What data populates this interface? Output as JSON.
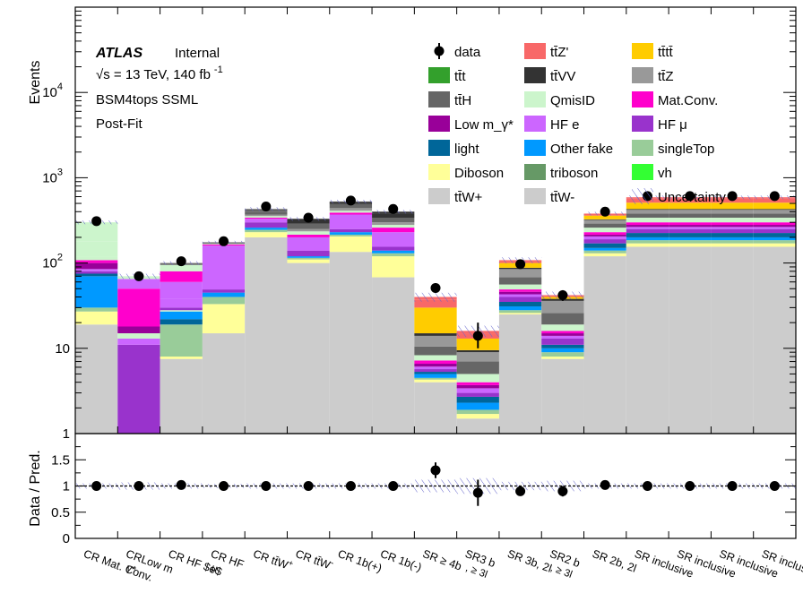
{
  "chart_data": {
    "type": "bar",
    "stacked": true,
    "yscale": "log",
    "ylim": [
      1,
      100000
    ],
    "ratio_ylim": [
      0,
      2
    ],
    "ylabel": "Events",
    "ratio_ylabel": "Data / Pred.",
    "ytick_labels": [
      "1",
      "10",
      "10",
      "10",
      "10"
    ],
    "ytick_exponents": [
      "",
      "",
      "2",
      "3",
      "4"
    ],
    "ratio_ytick_labels": [
      "0",
      "0.5",
      "1",
      "1.5"
    ],
    "header": {
      "experiment": "ATLAS",
      "status": "Internal",
      "energy_prefix": "√s = 13 TeV, 140 fb",
      "energy_exponent": "-1",
      "analysis": "BSM4tops SSML",
      "fit": "Post-Fit"
    },
    "categories": [
      "CR Mat. Conv.",
      "CRLow m_γ*",
      "CR HF $e$",
      "CR HF μ",
      "CR tt̄W+",
      "CR tt̄W-",
      "CR 1b(+)",
      "CR 1b(-)",
      "SR ≥ 4b",
      "SR3 b , ≥ 3l",
      "SR 3b, 2l",
      "SR2 b , ≥ 3l",
      "SR 2b, 2l",
      "SR inclusive",
      "SR inclusive",
      "SR inclusive",
      "SR inclusive"
    ],
    "category_labels": [
      "CR Mat. Conv.",
      "CRLow m",
      "CR HF $e$",
      "CR HF",
      "CR tt̄W",
      "CR tt̄W",
      "CR 1b(+)",
      "CR 1b(-)",
      "SR ≥ 4b",
      "SR3 b",
      "SR 3b, 2l",
      "SR2 b",
      "SR 2b, 2l",
      "SR inclusive",
      "SR inclusive",
      "SR inclusive",
      "SR inclusi"
    ],
    "category_sublabels": [
      "",
      "γ*",
      "",
      "μ",
      "",
      "",
      "",
      "",
      "",
      ", ≥ 3l",
      "",
      ", ≥ 3l",
      "",
      "",
      "",
      "",
      ""
    ],
    "category_superscripts": [
      "",
      "",
      "",
      "",
      "+",
      "-",
      "",
      "",
      "",
      "",
      "",
      "",
      "",
      "",
      "",
      "",
      ""
    ],
    "legend": [
      {
        "name": "data",
        "kind": "marker",
        "color": "#000000"
      },
      {
        "name": "tt̄Z'",
        "color": "#f86868"
      },
      {
        "name": "tt̄tt̄",
        "color": "#ffcc00"
      },
      {
        "name": "tt̄t",
        "color": "#33a02c"
      },
      {
        "name": "tt̄VV",
        "color": "#333333"
      },
      {
        "name": "tt̄Z",
        "color": "#999999"
      },
      {
        "name": "tt̄H",
        "color": "#666666"
      },
      {
        "name": "QmisID",
        "color": "#ccf5cc"
      },
      {
        "name": "Mat.Conv.",
        "color": "#ff00cc"
      },
      {
        "name": "Low m_γ*",
        "color": "#990099"
      },
      {
        "name": "HF e",
        "color": "#cc66ff"
      },
      {
        "name": "HF μ",
        "color": "#9933cc"
      },
      {
        "name": "light",
        "color": "#006699"
      },
      {
        "name": "Other fake",
        "color": "#0099ff"
      },
      {
        "name": "singleTop",
        "color": "#99cc99"
      },
      {
        "name": "Diboson",
        "color": "#ffff99"
      },
      {
        "name": "triboson",
        "color": "#669966"
      },
      {
        "name": "vh",
        "color": "#33ff33"
      },
      {
        "name": "tt̄W+",
        "color": "#cccccc"
      },
      {
        "name": "tt̄W-",
        "color": "#cccccc"
      },
      {
        "name": "Uncertainty",
        "kind": "hatch",
        "color": "#6666cc"
      }
    ],
    "stack_components": [
      "tt̄W",
      "Diboson",
      "singleTop",
      "Other fake",
      "light",
      "HF μ",
      "HF e",
      "Low m_γ*",
      "Mat.Conv.",
      "QmisID",
      "tt̄H",
      "tt̄Z",
      "tt̄VV",
      "tt̄t",
      "tt̄tt̄",
      "tt̄Z'"
    ],
    "stacks": [
      {
        "edges": [
          19,
          27,
          30,
          70,
          75,
          80,
          85,
          100,
          108,
          120,
          180,
          300
        ]
      },
      {
        "edges": [
          0.01,
          11,
          13,
          15,
          18,
          50,
          65,
          68,
          70
        ]
      },
      {
        "edges": [
          7.5,
          8,
          19,
          22,
          27,
          28,
          30,
          38,
          60,
          80,
          95,
          98,
          100
        ]
      },
      {
        "edges": [
          15,
          33,
          40,
          45,
          49,
          160,
          165,
          168,
          172,
          175
        ]
      },
      {
        "edges": [
          200,
          230,
          245,
          260,
          300,
          330,
          340,
          355,
          370,
          400,
          430
        ]
      },
      {
        "edges": [
          100,
          110,
          115,
          120,
          140,
          200,
          215,
          235,
          250,
          290,
          320,
          330
        ]
      },
      {
        "edges": [
          135,
          205,
          215,
          230,
          250,
          370,
          390,
          410,
          440,
          490,
          510,
          525
        ]
      },
      {
        "edges": [
          68,
          120,
          130,
          140,
          155,
          230,
          260,
          280,
          300,
          340,
          380,
          400
        ]
      },
      {
        "edges": [
          4,
          4.3,
          4.5,
          5,
          5.3,
          5.7,
          6.1,
          6.6,
          7.2,
          8.3,
          10.5,
          14,
          15,
          30,
          37,
          40
        ]
      },
      {
        "edges": [
          1.5,
          1.7,
          1.9,
          2.3,
          2.7,
          3,
          3.4,
          3.7,
          4,
          5,
          7,
          9,
          9.5,
          13,
          15,
          16
        ]
      },
      {
        "edges": [
          25,
          26,
          28,
          31,
          35,
          40,
          43,
          46,
          49,
          56,
          68,
          85,
          88,
          100,
          105,
          108
        ]
      },
      {
        "edges": [
          7.5,
          8,
          9,
          10,
          11,
          13,
          14,
          15,
          16,
          19,
          26,
          36,
          38,
          40,
          41,
          42
        ]
      },
      {
        "edges": [
          120,
          130,
          140,
          150,
          170,
          190,
          205,
          215,
          230,
          260,
          290,
          320,
          325,
          360,
          375,
          380
        ]
      },
      {
        "edges": [
          155,
          170,
          185,
          200,
          225,
          250,
          265,
          280,
          300,
          340,
          380,
          420,
          430,
          510,
          570,
          590
        ]
      },
      {
        "edges": [
          155,
          170,
          185,
          200,
          225,
          250,
          265,
          280,
          300,
          340,
          380,
          420,
          430,
          510,
          570,
          590
        ]
      },
      {
        "edges": [
          155,
          170,
          185,
          200,
          225,
          250,
          265,
          280,
          300,
          340,
          380,
          420,
          430,
          510,
          570,
          590
        ]
      },
      {
        "edges": [
          155,
          170,
          185,
          200,
          225,
          250,
          265,
          280,
          300,
          340,
          380,
          420,
          430,
          510,
          570,
          590
        ]
      }
    ],
    "stack_colors": [
      [
        "#cccccc",
        "#ffff99",
        "#99cc99",
        "#0099ff",
        "#006699",
        "#9933cc",
        "#cc66ff",
        "#990099",
        "#ff00cc",
        "#ccf5cc",
        "#ccf5cc"
      ],
      [
        "#0099ff",
        "#9933cc",
        "#cc66ff",
        "#ccf5cc",
        "#990099",
        "#ff00cc",
        "#cc66ff",
        "#ccf5cc"
      ],
      [
        "#cccccc",
        "#ffff99",
        "#99cc99",
        "#006699",
        "#0099ff",
        "#ccf5cc",
        "#9933cc",
        "#cc66ff",
        "#cc66ff",
        "#ff00cc",
        "#ccf5cc",
        "#666666"
      ],
      [
        "#cccccc",
        "#ffff99",
        "#99cc99",
        "#0099ff",
        "#9933cc",
        "#cc66ff",
        "#ff00cc",
        "#ccf5cc",
        "#666666"
      ],
      [
        "#cccccc",
        "#ffff99",
        "#99cc99",
        "#0099ff",
        "#9933cc",
        "#cc66ff",
        "#ff00cc",
        "#ccf5cc",
        "#999999",
        "#666666"
      ],
      [
        "#cccccc",
        "#ffff99",
        "#99cc99",
        "#0099ff",
        "#9933cc",
        "#cc66ff",
        "#ff00cc",
        "#ccf5cc",
        "#999999",
        "#666666",
        "#333333"
      ],
      [
        "#cccccc",
        "#ffff99",
        "#99cc99",
        "#0099ff",
        "#9933cc",
        "#cc66ff",
        "#ff00cc",
        "#ccf5cc",
        "#999999",
        "#666666",
        "#333333"
      ],
      [
        "#cccccc",
        "#ffff99",
        "#99cc99",
        "#0099ff",
        "#9933cc",
        "#cc66ff",
        "#ff00cc",
        "#ccf5cc",
        "#999999",
        "#666666",
        "#333333"
      ],
      [
        "#cccccc",
        "#ffff99",
        "#99cc99",
        "#0099ff",
        "#006699",
        "#9933cc",
        "#cc66ff",
        "#990099",
        "#ff00cc",
        "#ccf5cc",
        "#666666",
        "#999999",
        "#333333",
        "#ffcc00",
        "#f86868"
      ],
      [
        "#cccccc",
        "#ffff99",
        "#99cc99",
        "#0099ff",
        "#006699",
        "#9933cc",
        "#cc66ff",
        "#990099",
        "#ff00cc",
        "#ccf5cc",
        "#666666",
        "#999999",
        "#333333",
        "#ffcc00",
        "#f86868"
      ],
      [
        "#cccccc",
        "#ffff99",
        "#99cc99",
        "#0099ff",
        "#006699",
        "#9933cc",
        "#cc66ff",
        "#990099",
        "#ff00cc",
        "#ccf5cc",
        "#666666",
        "#999999",
        "#333333",
        "#ffcc00",
        "#f86868"
      ],
      [
        "#cccccc",
        "#ffff99",
        "#99cc99",
        "#0099ff",
        "#006699",
        "#9933cc",
        "#cc66ff",
        "#990099",
        "#ff00cc",
        "#ccf5cc",
        "#666666",
        "#999999",
        "#333333",
        "#ffcc00",
        "#f86868"
      ],
      [
        "#cccccc",
        "#ffff99",
        "#99cc99",
        "#0099ff",
        "#006699",
        "#9933cc",
        "#cc66ff",
        "#990099",
        "#ff00cc",
        "#ccf5cc",
        "#666666",
        "#999999",
        "#333333",
        "#ffcc00",
        "#f86868"
      ],
      [
        "#cccccc",
        "#ffff99",
        "#99cc99",
        "#0099ff",
        "#006699",
        "#9933cc",
        "#cc66ff",
        "#990099",
        "#ff00cc",
        "#ccf5cc",
        "#666666",
        "#999999",
        "#333333",
        "#ffcc00",
        "#f86868"
      ],
      [
        "#cccccc",
        "#ffff99",
        "#99cc99",
        "#0099ff",
        "#006699",
        "#9933cc",
        "#cc66ff",
        "#990099",
        "#ff00cc",
        "#ccf5cc",
        "#666666",
        "#999999",
        "#333333",
        "#ffcc00",
        "#f86868"
      ],
      [
        "#cccccc",
        "#ffff99",
        "#99cc99",
        "#0099ff",
        "#006699",
        "#9933cc",
        "#cc66ff",
        "#990099",
        "#ff00cc",
        "#ccf5cc",
        "#666666",
        "#999999",
        "#333333",
        "#ffcc00",
        "#f86868"
      ],
      [
        "#cccccc",
        "#ffff99",
        "#99cc99",
        "#0099ff",
        "#006699",
        "#9933cc",
        "#cc66ff",
        "#990099",
        "#ff00cc",
        "#ccf5cc",
        "#666666",
        "#999999",
        "#333333",
        "#ffcc00",
        "#f86868"
      ]
    ],
    "data": [
      {
        "y": 310,
        "err": [
          0,
          0
        ]
      },
      {
        "y": 70,
        "err": [
          0,
          0
        ]
      },
      {
        "y": 105,
        "err": [
          0,
          0
        ]
      },
      {
        "y": 180,
        "err": [
          0,
          0
        ]
      },
      {
        "y": 460,
        "err": [
          0,
          0
        ]
      },
      {
        "y": 340,
        "err": [
          0,
          0
        ]
      },
      {
        "y": 540,
        "err": [
          0,
          0
        ]
      },
      {
        "y": 430,
        "err": [
          0,
          0
        ]
      },
      {
        "y": 51,
        "err": [
          45,
          58
        ]
      },
      {
        "y": 14,
        "err": [
          10,
          20
        ]
      },
      {
        "y": 97,
        "err": [
          0,
          0
        ]
      },
      {
        "y": 42,
        "err": [
          36,
          48
        ]
      },
      {
        "y": 400,
        "err": [
          0,
          0
        ]
      },
      {
        "y": 610,
        "err": [
          0,
          0
        ]
      },
      {
        "y": 610,
        "err": [
          0,
          0
        ]
      },
      {
        "y": 610,
        "err": [
          0,
          0
        ]
      },
      {
        "y": 610,
        "err": [
          0,
          0
        ]
      }
    ],
    "ratio": [
      {
        "y": 1.0,
        "err": [
          1.0,
          1.0
        ]
      },
      {
        "y": 1.0,
        "err": [
          0.93,
          1.07
        ]
      },
      {
        "y": 1.02,
        "err": [
          0.97,
          1.07
        ]
      },
      {
        "y": 1.0,
        "err": [
          1.0,
          1.0
        ]
      },
      {
        "y": 1.0,
        "err": [
          1.0,
          1.0
        ]
      },
      {
        "y": 1.0,
        "err": [
          1.0,
          1.0
        ]
      },
      {
        "y": 1.0,
        "err": [
          1.0,
          1.0
        ]
      },
      {
        "y": 1.0,
        "err": [
          1.0,
          1.0
        ]
      },
      {
        "y": 1.3,
        "err": [
          1.15,
          1.45
        ]
      },
      {
        "y": 0.87,
        "err": [
          0.62,
          1.12
        ]
      },
      {
        "y": 0.9,
        "err": [
          0.9,
          0.9
        ]
      },
      {
        "y": 0.9,
        "err": [
          0.8,
          1.0
        ]
      },
      {
        "y": 1.02,
        "err": [
          1.02,
          1.02
        ]
      },
      {
        "y": 1.0,
        "err": [
          1.0,
          1.0
        ]
      },
      {
        "y": 1.0,
        "err": [
          1.0,
          1.0
        ]
      },
      {
        "y": 1.0,
        "err": [
          1.0,
          1.0
        ]
      },
      {
        "y": 1.0,
        "err": [
          1.0,
          1.0
        ]
      }
    ],
    "uncertainty_rel": [
      0.05,
      0.07,
      0.05,
      0.04,
      0.05,
      0.05,
      0.05,
      0.05,
      0.12,
      0.15,
      0.08,
      0.1,
      0.05,
      0.05,
      0.05,
      0.05,
      0.05
    ]
  }
}
